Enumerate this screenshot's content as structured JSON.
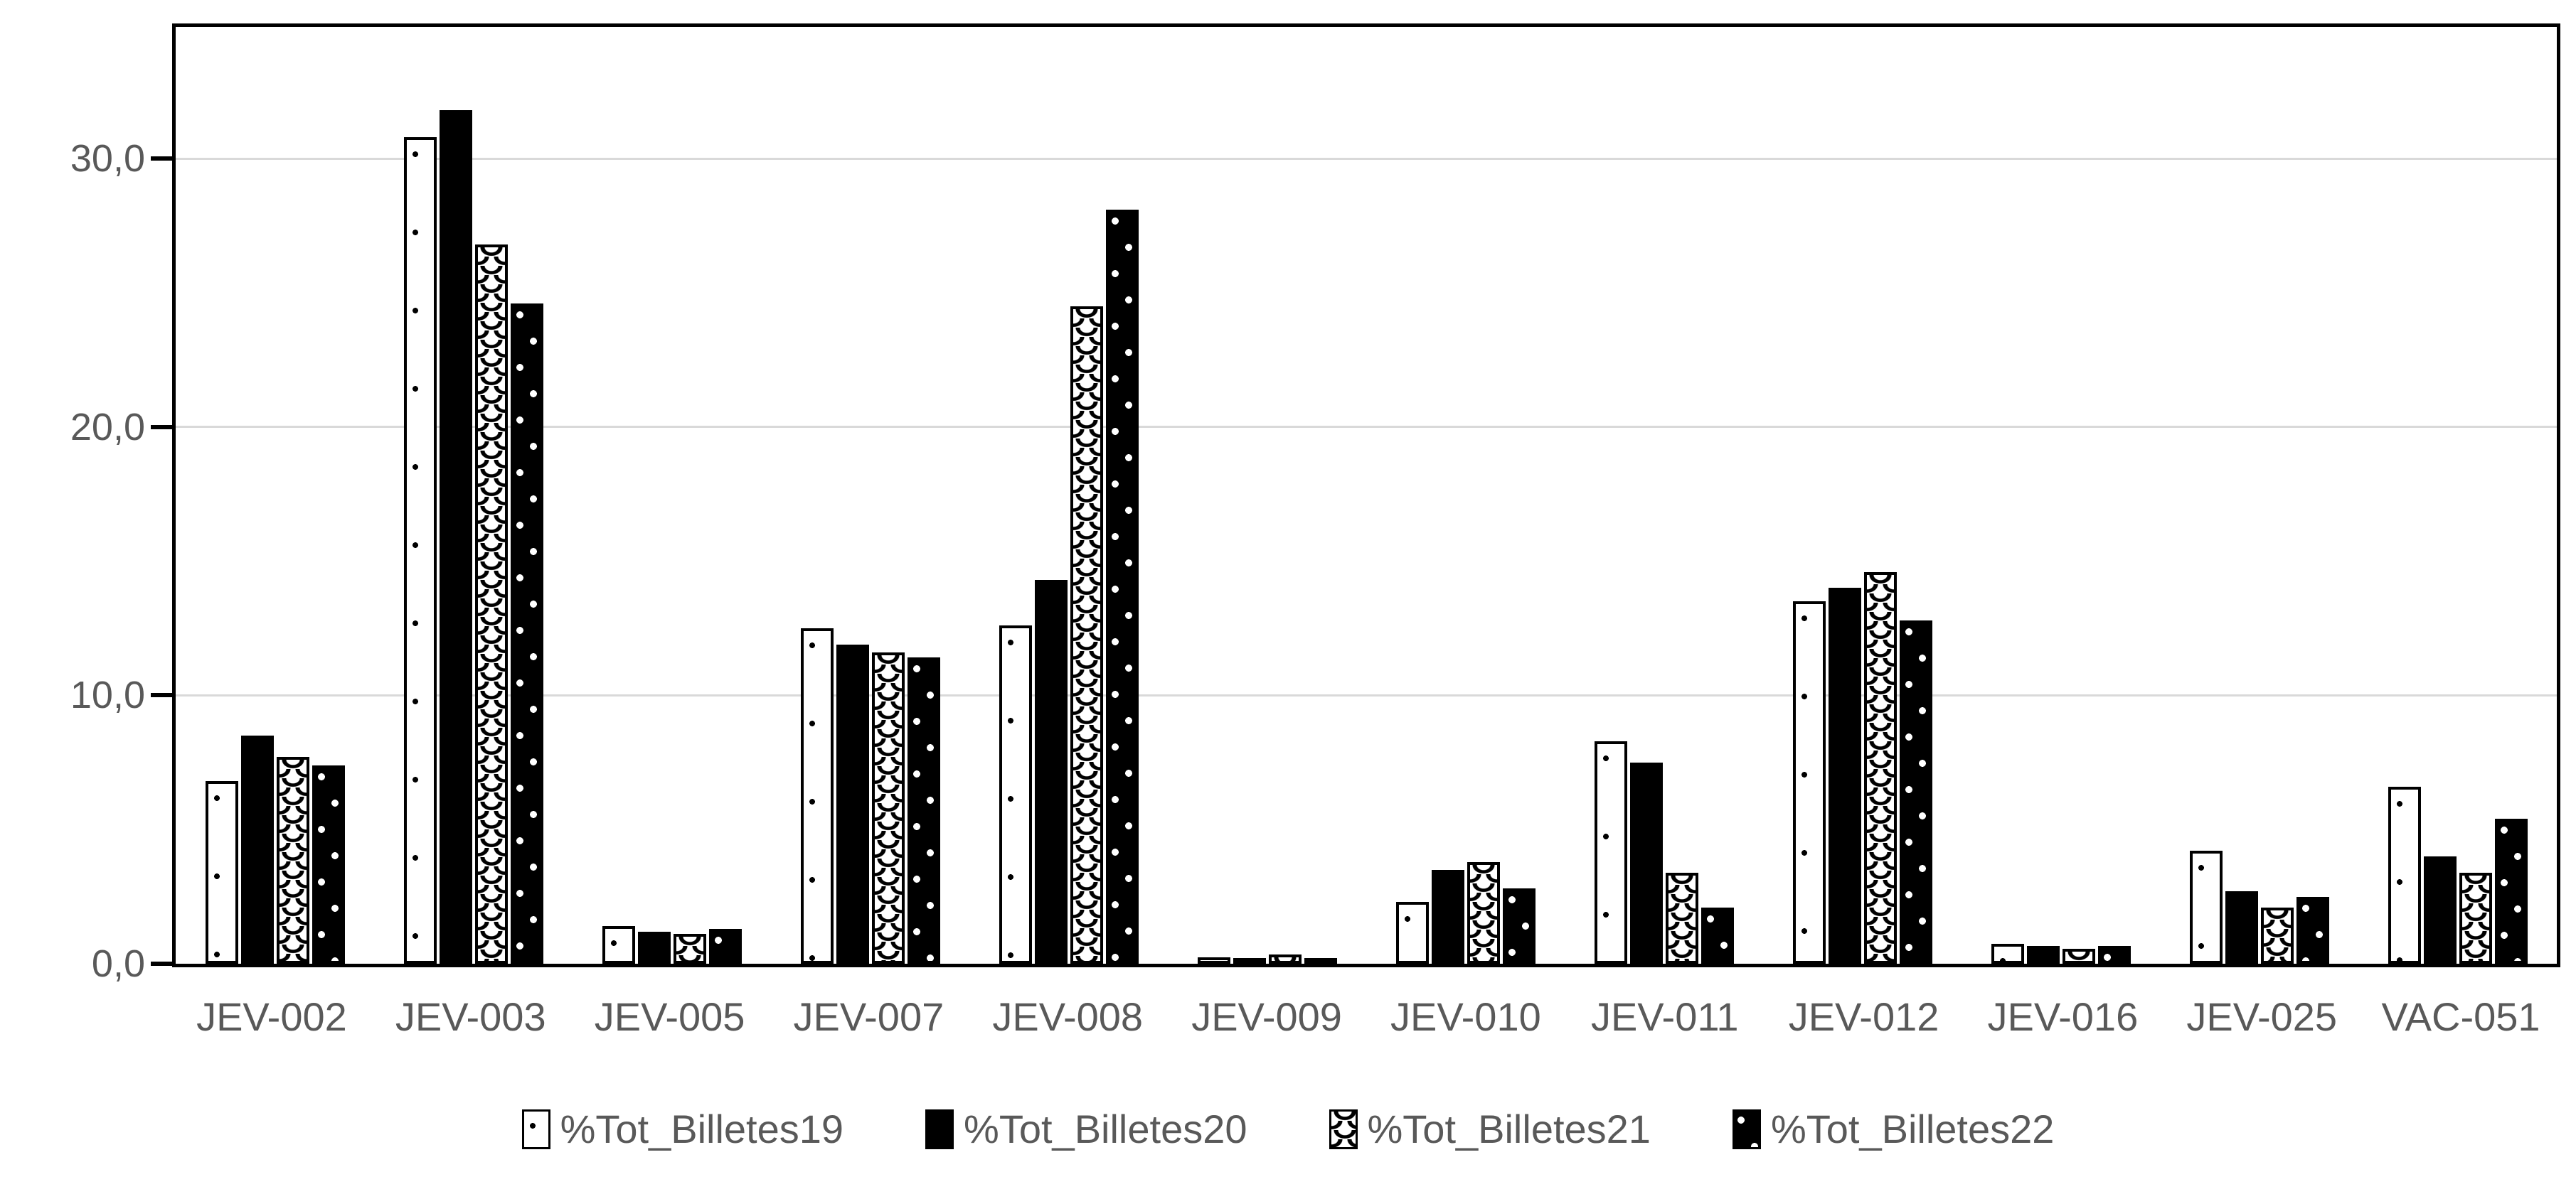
{
  "chart_data": {
    "type": "bar",
    "title": "",
    "xlabel": "",
    "ylabel": "",
    "categories": [
      "JEV-002",
      "JEV-003",
      "JEV-005",
      "JEV-007",
      "JEV-008",
      "JEV-009",
      "JEV-010",
      "JEV-011",
      "JEV-012",
      "JEV-016",
      "JEV-025",
      "VAC-051"
    ],
    "series": [
      {
        "name": "%Tot_Billetes19",
        "pattern": "white-dots",
        "values": [
          6.8,
          30.8,
          1.4,
          12.5,
          12.6,
          0.25,
          2.3,
          8.3,
          13.5,
          0.75,
          4.2,
          6.6
        ]
      },
      {
        "name": "%Tot_Billetes20",
        "pattern": "solid-black",
        "values": [
          8.5,
          31.8,
          1.2,
          11.9,
          14.3,
          0.2,
          3.5,
          7.5,
          14.0,
          0.65,
          2.7,
          4.0
        ]
      },
      {
        "name": "%Tot_Billetes21",
        "pattern": "fish-scale",
        "values": [
          7.7,
          26.8,
          1.1,
          11.6,
          24.5,
          0.35,
          3.8,
          3.4,
          14.6,
          0.55,
          2.1,
          3.4
        ]
      },
      {
        "name": "%Tot_Billetes22",
        "pattern": "black-dots",
        "values": [
          7.4,
          24.6,
          1.3,
          11.4,
          28.1,
          0.2,
          2.8,
          2.1,
          12.8,
          0.65,
          2.5,
          5.4
        ]
      }
    ],
    "yticks": [
      {
        "value": 0,
        "label": "0,0"
      },
      {
        "value": 10,
        "label": "10,0"
      },
      {
        "value": 20,
        "label": "20,0"
      },
      {
        "value": 30,
        "label": "30,0"
      }
    ],
    "ylim": [
      0,
      34.9
    ],
    "grid": true,
    "legend_position": "bottom",
    "colors": {
      "bar_foreground": "#000000",
      "bar_background": "#ffffff",
      "gridline": "#d9d9d9",
      "axis_line": "#000000",
      "label_text": "#595959"
    }
  }
}
